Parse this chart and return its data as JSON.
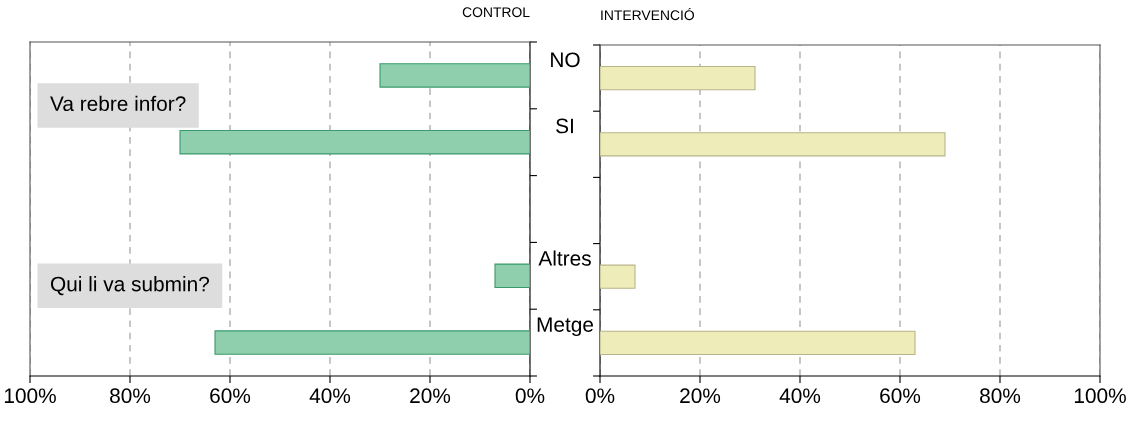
{
  "chart_data": [
    {
      "type": "bar",
      "orientation": "horizontal",
      "title": "CONTROL",
      "categories": [
        null,
        null,
        null,
        null,
        null
      ],
      "values": [
        30,
        70,
        null,
        7,
        63
      ],
      "color": "#8fcfae",
      "xlim": [
        100,
        0
      ],
      "xticks": [
        {
          "value": 100,
          "label": "100%"
        },
        {
          "value": 80,
          "label": "80%"
        },
        {
          "value": 60,
          "label": "60%"
        },
        {
          "value": 40,
          "label": "40%"
        },
        {
          "value": 20,
          "label": "20%"
        },
        {
          "value": 0,
          "label": "0%"
        }
      ],
      "grid": "x",
      "tick_labels": "x",
      "annotations": [
        "Va rebre infor?",
        "Qui li va submin?"
      ]
    },
    {
      "type": "bar",
      "orientation": "horizontal",
      "title": "INTERVENCIÓ",
      "categories": [
        "NO",
        "SI",
        null,
        "Altres",
        "Metge"
      ],
      "values": [
        31,
        69,
        null,
        7,
        63
      ],
      "color": "#eeecb8",
      "xlim": [
        0,
        100
      ],
      "xticks": [
        {
          "value": 0,
          "label": "0%"
        },
        {
          "value": 20,
          "label": "20%"
        },
        {
          "value": 40,
          "label": "40%"
        },
        {
          "value": 60,
          "label": "60%"
        },
        {
          "value": 80,
          "label": "80%"
        },
        {
          "value": 100,
          "label": "100%"
        }
      ],
      "grid": "x"
    }
  ]
}
